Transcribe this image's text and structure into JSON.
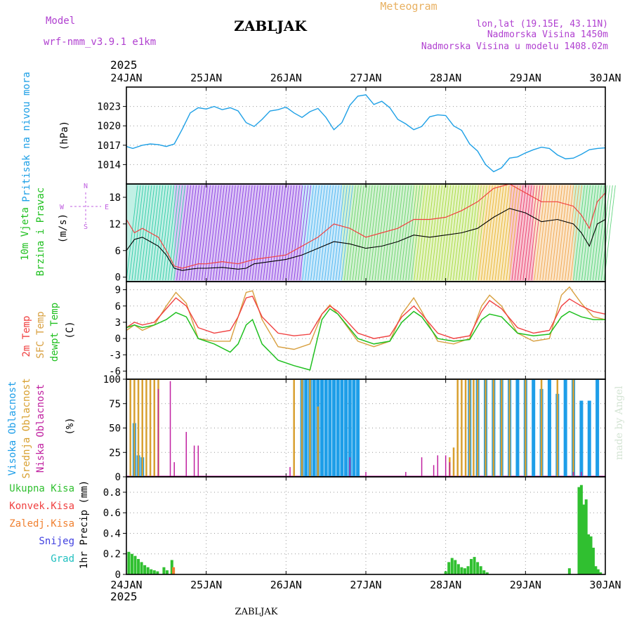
{
  "header": {
    "model_label": "Model",
    "model_name": "wrf-nmm_v3.9.1 e1km",
    "station": "ZABLJAK",
    "product": "Meteogram",
    "coords": "lon,lat (19.15E, 43.11N)",
    "elevation": "Nadmorska Visina 1450m",
    "model_elevation": "Nadmorska Visina u modelu 1408.02m",
    "watermark": "made by Angel",
    "footer_station": "ZABLJAK"
  },
  "time_axis": {
    "year": "2025",
    "ticks": [
      "24JAN",
      "25JAN",
      "26JAN",
      "27JAN",
      "28JAN",
      "29JAN",
      "30JAN"
    ]
  },
  "colors": {
    "pressure": "#1ea0e6",
    "temp2m": "#f04040",
    "sfc": "#d8a040",
    "dewpt": "#20c020",
    "high_cloud": "#1e9ee8",
    "mid_cloud": "#d8a030",
    "low_cloud": "#c020a0",
    "total_precip": "#30c030",
    "conv_precip": "#f04040",
    "frozen_precip": "#f08030",
    "snow": "#4040e0",
    "hail": "#20c0c0",
    "wind_label": "#20c020",
    "wind_dir_label": "#c060e0",
    "meta": "#b040d0",
    "product": "#e8b060"
  },
  "chart_data": [
    {
      "type": "line",
      "id": "pressure",
      "ylabel": "Pritisak na nivou mora",
      "unit": "(hPa)",
      "ylim": [
        1011,
        1026
      ],
      "yticks": [
        1014,
        1017,
        1020,
        1023
      ],
      "grid": true,
      "series": [
        {
          "x": [
            0,
            0.08,
            0.2,
            0.3,
            0.4,
            0.5,
            0.6,
            0.7,
            0.8,
            0.9,
            1.0,
            1.1,
            1.2,
            1.3,
            1.4,
            1.5,
            1.6,
            1.7,
            1.8,
            1.9,
            2.0,
            2.1,
            2.2,
            2.3,
            2.4,
            2.5,
            2.6,
            2.7,
            2.8,
            2.9,
            3.0,
            3.1,
            3.2,
            3.3,
            3.4,
            3.5,
            3.6,
            3.7,
            3.8,
            3.9,
            4.0,
            4.1,
            4.2,
            4.3,
            4.4,
            4.5,
            4.6,
            4.7,
            4.8,
            4.9,
            5.0,
            5.1,
            5.2,
            5.3,
            5.4,
            5.5,
            5.6,
            5.7,
            5.8,
            5.9,
            6.0
          ],
          "y": [
            1016.8,
            1016.5,
            1017.0,
            1017.2,
            1017.1,
            1016.8,
            1017.2,
            1019.5,
            1022.0,
            1022.8,
            1022.6,
            1023.0,
            1022.5,
            1022.8,
            1022.3,
            1020.5,
            1019.9,
            1021.0,
            1022.3,
            1022.5,
            1022.9,
            1022.0,
            1021.3,
            1022.2,
            1022.7,
            1021.3,
            1019.4,
            1020.5,
            1023.2,
            1024.6,
            1024.8,
            1023.3,
            1023.8,
            1022.8,
            1021.0,
            1020.3,
            1019.4,
            1019.9,
            1021.4,
            1021.7,
            1021.6,
            1020.0,
            1019.3,
            1017.2,
            1016.1,
            1014.0,
            1012.9,
            1013.5,
            1015.0,
            1015.2,
            1015.8,
            1016.3,
            1016.7,
            1016.5,
            1015.5,
            1014.9,
            1015.0,
            1015.6,
            1016.3,
            1016.5,
            1016.6
          ]
        }
      ]
    },
    {
      "type": "line",
      "id": "wind",
      "ylabel": "10m Vjetar Brzina i Pravac",
      "unit": "(m/s)",
      "compass": [
        "N",
        "E",
        "S",
        "W"
      ],
      "ylim": [
        -1,
        21
      ],
      "yticks": [
        0,
        6,
        12,
        18
      ],
      "grid": false,
      "series": [
        {
          "name": "speed",
          "x": [
            0,
            0.1,
            0.2,
            0.3,
            0.4,
            0.5,
            0.6,
            0.7,
            0.8,
            0.9,
            1.0,
            1.2,
            1.4,
            1.5,
            1.6,
            1.8,
            2.0,
            2.2,
            2.4,
            2.6,
            2.8,
            3.0,
            3.2,
            3.4,
            3.6,
            3.8,
            4.0,
            4.2,
            4.4,
            4.6,
            4.8,
            5.0,
            5.2,
            5.4,
            5.6,
            5.7,
            5.8,
            5.9,
            6.0
          ],
          "y": [
            6,
            8.5,
            9,
            8,
            7,
            5,
            2,
            1.5,
            1.8,
            2,
            2,
            2.2,
            1.8,
            2,
            3,
            3.5,
            4,
            5,
            6.5,
            8,
            7.5,
            6.5,
            7,
            8,
            9.5,
            9,
            9.5,
            10,
            11,
            13.5,
            15.5,
            14.5,
            12.5,
            13,
            12,
            10,
            7,
            12,
            13
          ]
        },
        {
          "name": "gust",
          "x": [
            0,
            0.1,
            0.2,
            0.3,
            0.4,
            0.5,
            0.6,
            0.7,
            0.8,
            0.9,
            1.0,
            1.2,
            1.4,
            1.5,
            1.6,
            1.8,
            2.0,
            2.2,
            2.4,
            2.6,
            2.8,
            3.0,
            3.2,
            3.4,
            3.6,
            3.8,
            4.0,
            4.2,
            4.4,
            4.6,
            4.8,
            5.0,
            5.2,
            5.4,
            5.6,
            5.7,
            5.8,
            5.9,
            6.0
          ],
          "y": [
            13,
            10,
            11,
            10,
            9,
            6,
            2.5,
            2,
            2.5,
            3,
            3,
            3.5,
            3,
            3.5,
            4,
            4.5,
            5,
            7,
            9,
            12,
            11,
            9,
            10,
            11,
            13,
            13,
            13.5,
            15,
            17,
            20,
            21,
            19,
            17,
            17,
            16,
            14,
            11,
            17,
            19
          ]
        }
      ]
    },
    {
      "type": "line",
      "id": "temperature",
      "ylabel": [
        "2m Temp",
        "SFC Temp",
        "dewpt Temp"
      ],
      "unit": "(C)",
      "ylim": [
        -7.5,
        10.5
      ],
      "yticks": [
        -6,
        -3,
        0,
        3,
        6,
        9
      ],
      "grid": true,
      "series": [
        {
          "name": "2m Temp",
          "x": [
            0,
            0.1,
            0.2,
            0.35,
            0.5,
            0.62,
            0.75,
            0.9,
            1.1,
            1.3,
            1.4,
            1.5,
            1.58,
            1.7,
            1.9,
            2.1,
            2.3,
            2.45,
            2.55,
            2.65,
            2.9,
            3.1,
            3.3,
            3.45,
            3.6,
            3.7,
            3.9,
            4.1,
            4.3,
            4.45,
            4.55,
            4.7,
            4.9,
            5.1,
            5.3,
            5.45,
            5.55,
            5.7,
            5.85,
            6.0
          ],
          "y": [
            2,
            3,
            2.5,
            3,
            5.5,
            7.5,
            6,
            2,
            1,
            1.5,
            4,
            7.5,
            7.8,
            4,
            1,
            0.5,
            0.8,
            4.5,
            6,
            5,
            1,
            0,
            0.5,
            4,
            6,
            4.5,
            1,
            0,
            0.5,
            5,
            7,
            5.5,
            2,
            1,
            1.5,
            6,
            7.3,
            6,
            5,
            4.5
          ]
        },
        {
          "name": "SFC Temp",
          "x": [
            0,
            0.1,
            0.2,
            0.35,
            0.5,
            0.62,
            0.75,
            0.9,
            1.1,
            1.3,
            1.4,
            1.5,
            1.58,
            1.7,
            1.9,
            2.1,
            2.3,
            2.45,
            2.55,
            2.65,
            2.9,
            3.1,
            3.3,
            3.45,
            3.6,
            3.7,
            3.9,
            4.1,
            4.3,
            4.45,
            4.55,
            4.7,
            4.9,
            5.1,
            5.3,
            5.45,
            5.55,
            5.7,
            5.85,
            6.0
          ],
          "y": [
            1.5,
            2.5,
            1.5,
            2.5,
            6,
            8.5,
            6.5,
            0,
            -0.5,
            -0.5,
            4,
            8.5,
            8.8,
            3.5,
            -1.5,
            -2,
            -1,
            4.5,
            6.2,
            4.5,
            -0.5,
            -1.5,
            -0.5,
            4.5,
            7.5,
            5,
            -0.5,
            -1,
            0,
            6,
            8,
            6,
            1,
            -0.5,
            0,
            8,
            9.5,
            6.5,
            4,
            3.5
          ]
        },
        {
          "name": "dewpt Temp",
          "x": [
            0,
            0.1,
            0.2,
            0.35,
            0.5,
            0.62,
            0.75,
            0.9,
            1.1,
            1.3,
            1.4,
            1.5,
            1.58,
            1.7,
            1.9,
            2.1,
            2.3,
            2.45,
            2.55,
            2.65,
            2.9,
            3.1,
            3.3,
            3.45,
            3.6,
            3.7,
            3.9,
            4.1,
            4.3,
            4.45,
            4.55,
            4.7,
            4.9,
            5.1,
            5.3,
            5.45,
            5.55,
            5.7,
            5.85,
            6.0
          ],
          "y": [
            2,
            2.5,
            2,
            2.5,
            3.5,
            4.8,
            4,
            0,
            -1,
            -2.5,
            -1,
            2.5,
            3.5,
            -1,
            -4,
            -5,
            -5.8,
            3.5,
            5.5,
            4.5,
            0,
            -1,
            -0.5,
            3,
            5,
            4,
            0,
            -0.5,
            -0.2,
            3.5,
            4.5,
            4,
            1,
            0.5,
            0.8,
            4,
            5,
            4,
            3.5,
            3.5
          ]
        }
      ]
    },
    {
      "type": "bar",
      "id": "clouds",
      "ylabel": [
        "Visoka Oblacnost",
        "Srednja Oblacnost",
        "Niska Oblacnost"
      ],
      "unit": "(%)",
      "ylim": [
        0,
        100
      ],
      "yticks": [
        0,
        25,
        50,
        75,
        100
      ],
      "grid": true,
      "series": [
        {
          "name": "Visoka Oblacnost",
          "x": [
            0.1,
            0.15,
            0.2,
            2.2,
            2.25,
            2.3,
            2.35,
            2.4,
            2.45,
            2.5,
            2.55,
            2.6,
            2.65,
            2.7,
            2.75,
            2.8,
            2.85,
            2.9,
            4.3,
            4.4,
            4.5,
            4.6,
            4.7,
            4.8,
            4.9,
            5.0,
            5.1,
            5.2,
            5.3,
            5.4,
            5.5,
            5.6,
            5.7,
            5.8,
            5.9
          ],
          "y": [
            55,
            22,
            20,
            100,
            100,
            100,
            100,
            100,
            100,
            100,
            100,
            100,
            100,
            100,
            100,
            100,
            100,
            100,
            100,
            100,
            100,
            100,
            100,
            100,
            100,
            100,
            100,
            90,
            100,
            85,
            100,
            100,
            78,
            78,
            100
          ]
        },
        {
          "name": "Srednja Oblacnost",
          "x": [
            0.05,
            0.1,
            0.15,
            0.2,
            0.25,
            0.3,
            0.35,
            0.4,
            2.1,
            2.2,
            2.3,
            2.4,
            4.05,
            4.1,
            4.15,
            4.2,
            4.25,
            4.3,
            4.35,
            4.4,
            4.5,
            4.6,
            4.7,
            4.8,
            5.0,
            5.2,
            5.4,
            5.6
          ],
          "y": [
            100,
            100,
            100,
            100,
            100,
            100,
            100,
            100,
            100,
            100,
            100,
            72,
            20,
            30,
            100,
            100,
            100,
            100,
            100,
            100,
            100,
            100,
            100,
            100,
            100,
            100,
            100,
            100
          ]
        },
        {
          "name": "Niska Oblacnost",
          "x": [
            0.4,
            0.55,
            0.6,
            0.75,
            0.85,
            0.9,
            2.05,
            2.8,
            3.0,
            3.5,
            3.7,
            3.85,
            3.9,
            4.0,
            4.05,
            5.6,
            5.7
          ],
          "y": [
            90,
            98,
            15,
            46,
            32,
            32,
            10,
            20,
            5,
            5,
            20,
            12,
            22,
            22,
            15,
            5,
            5
          ]
        }
      ]
    },
    {
      "type": "bar",
      "id": "precip",
      "ylabel": "1hr Precip",
      "unit": "(mm)",
      "legend": [
        "Ukupna Kisa",
        "Konvek.Kisa",
        "Zaledj.Kisa",
        "Snijeg",
        "Grad"
      ],
      "ylim": [
        0,
        0.95
      ],
      "yticks": [
        0,
        0.2,
        0.4,
        0.6,
        0.8
      ],
      "grid": true,
      "series": [
        {
          "name": "Ukupna Kisa",
          "x": [
            0.03,
            0.07,
            0.11,
            0.15,
            0.19,
            0.23,
            0.27,
            0.31,
            0.35,
            0.39,
            0.47,
            0.51,
            0.57,
            0.59,
            4.0,
            4.04,
            4.08,
            4.12,
            4.16,
            4.2,
            4.24,
            4.28,
            4.32,
            4.36,
            4.4,
            4.44,
            4.48,
            4.52,
            5.55,
            5.67,
            5.7,
            5.73,
            5.76,
            5.79,
            5.82,
            5.85,
            5.88,
            5.91,
            5.94
          ],
          "y": [
            0.22,
            0.2,
            0.18,
            0.15,
            0.12,
            0.09,
            0.07,
            0.05,
            0.04,
            0.03,
            0.07,
            0.04,
            0.14,
            0.06,
            0.03,
            0.12,
            0.16,
            0.14,
            0.1,
            0.07,
            0.06,
            0.08,
            0.15,
            0.17,
            0.12,
            0.08,
            0.04,
            0.02,
            0.06,
            0.85,
            0.87,
            0.68,
            0.73,
            0.39,
            0.37,
            0.26,
            0.08,
            0.05,
            0.02
          ]
        },
        {
          "name": "Zaledj.Kisa",
          "x": [
            0.59
          ],
          "y": [
            0.07
          ]
        }
      ]
    }
  ]
}
